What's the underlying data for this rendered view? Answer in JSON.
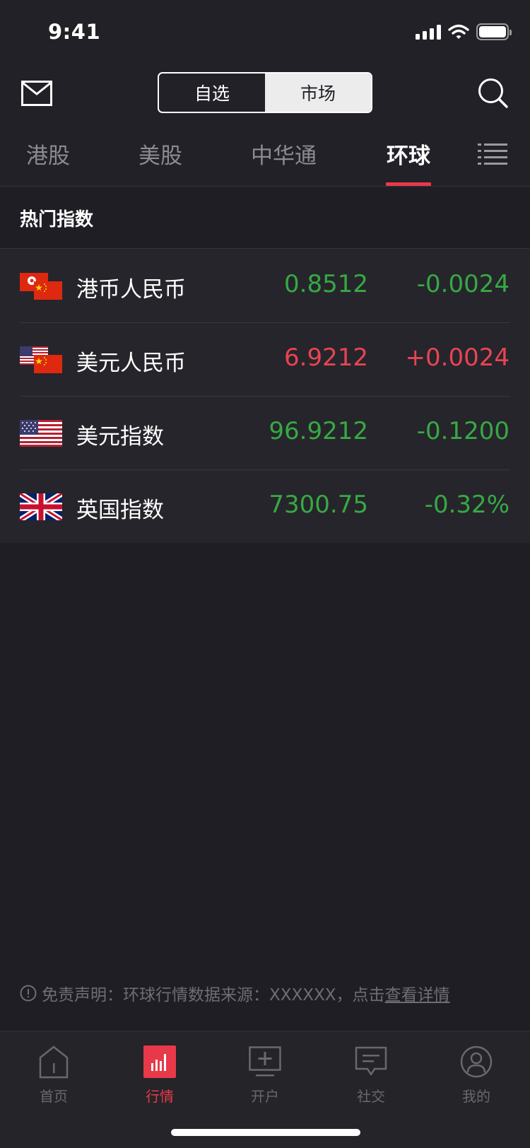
{
  "status_bar": {
    "time": "9:41"
  },
  "header": {
    "segments": [
      {
        "label": "自选",
        "selected": false
      },
      {
        "label": "市场",
        "selected": true
      }
    ]
  },
  "tabs": [
    {
      "label": "港股",
      "active": false
    },
    {
      "label": "美股",
      "active": false
    },
    {
      "label": "中华通",
      "active": false
    },
    {
      "label": "环球",
      "active": true
    }
  ],
  "accent_color": "#e8394a",
  "up_color": "#e84452",
  "down_color": "#36a944",
  "section": {
    "title": "热门指数",
    "items": [
      {
        "name": "港币人民币",
        "price": "0.8512",
        "change": "-0.0024",
        "direction": "down",
        "flag": "hk-cn"
      },
      {
        "name": "美元人民币",
        "price": "6.9212",
        "change": "+0.0024",
        "direction": "up",
        "flag": "us-cn"
      },
      {
        "name": "美元指数",
        "price": "96.9212",
        "change": "-0.1200",
        "direction": "down",
        "flag": "us"
      },
      {
        "name": "英国指数",
        "price": "7300.75",
        "change": "-0.32%",
        "direction": "down",
        "flag": "uk"
      }
    ]
  },
  "disclaimer": {
    "text": "免责声明：环球行情数据来源：XXXXXX，点击",
    "link": "查看详情"
  },
  "tabbar": {
    "items": [
      {
        "label": "首页",
        "icon": "home-icon",
        "active": false
      },
      {
        "label": "行情",
        "icon": "market-chart-icon",
        "active": true
      },
      {
        "label": "开户",
        "icon": "open-account-icon",
        "active": false
      },
      {
        "label": "社交",
        "icon": "social-chat-icon",
        "active": false
      },
      {
        "label": "我的",
        "icon": "profile-icon",
        "active": false
      }
    ]
  }
}
